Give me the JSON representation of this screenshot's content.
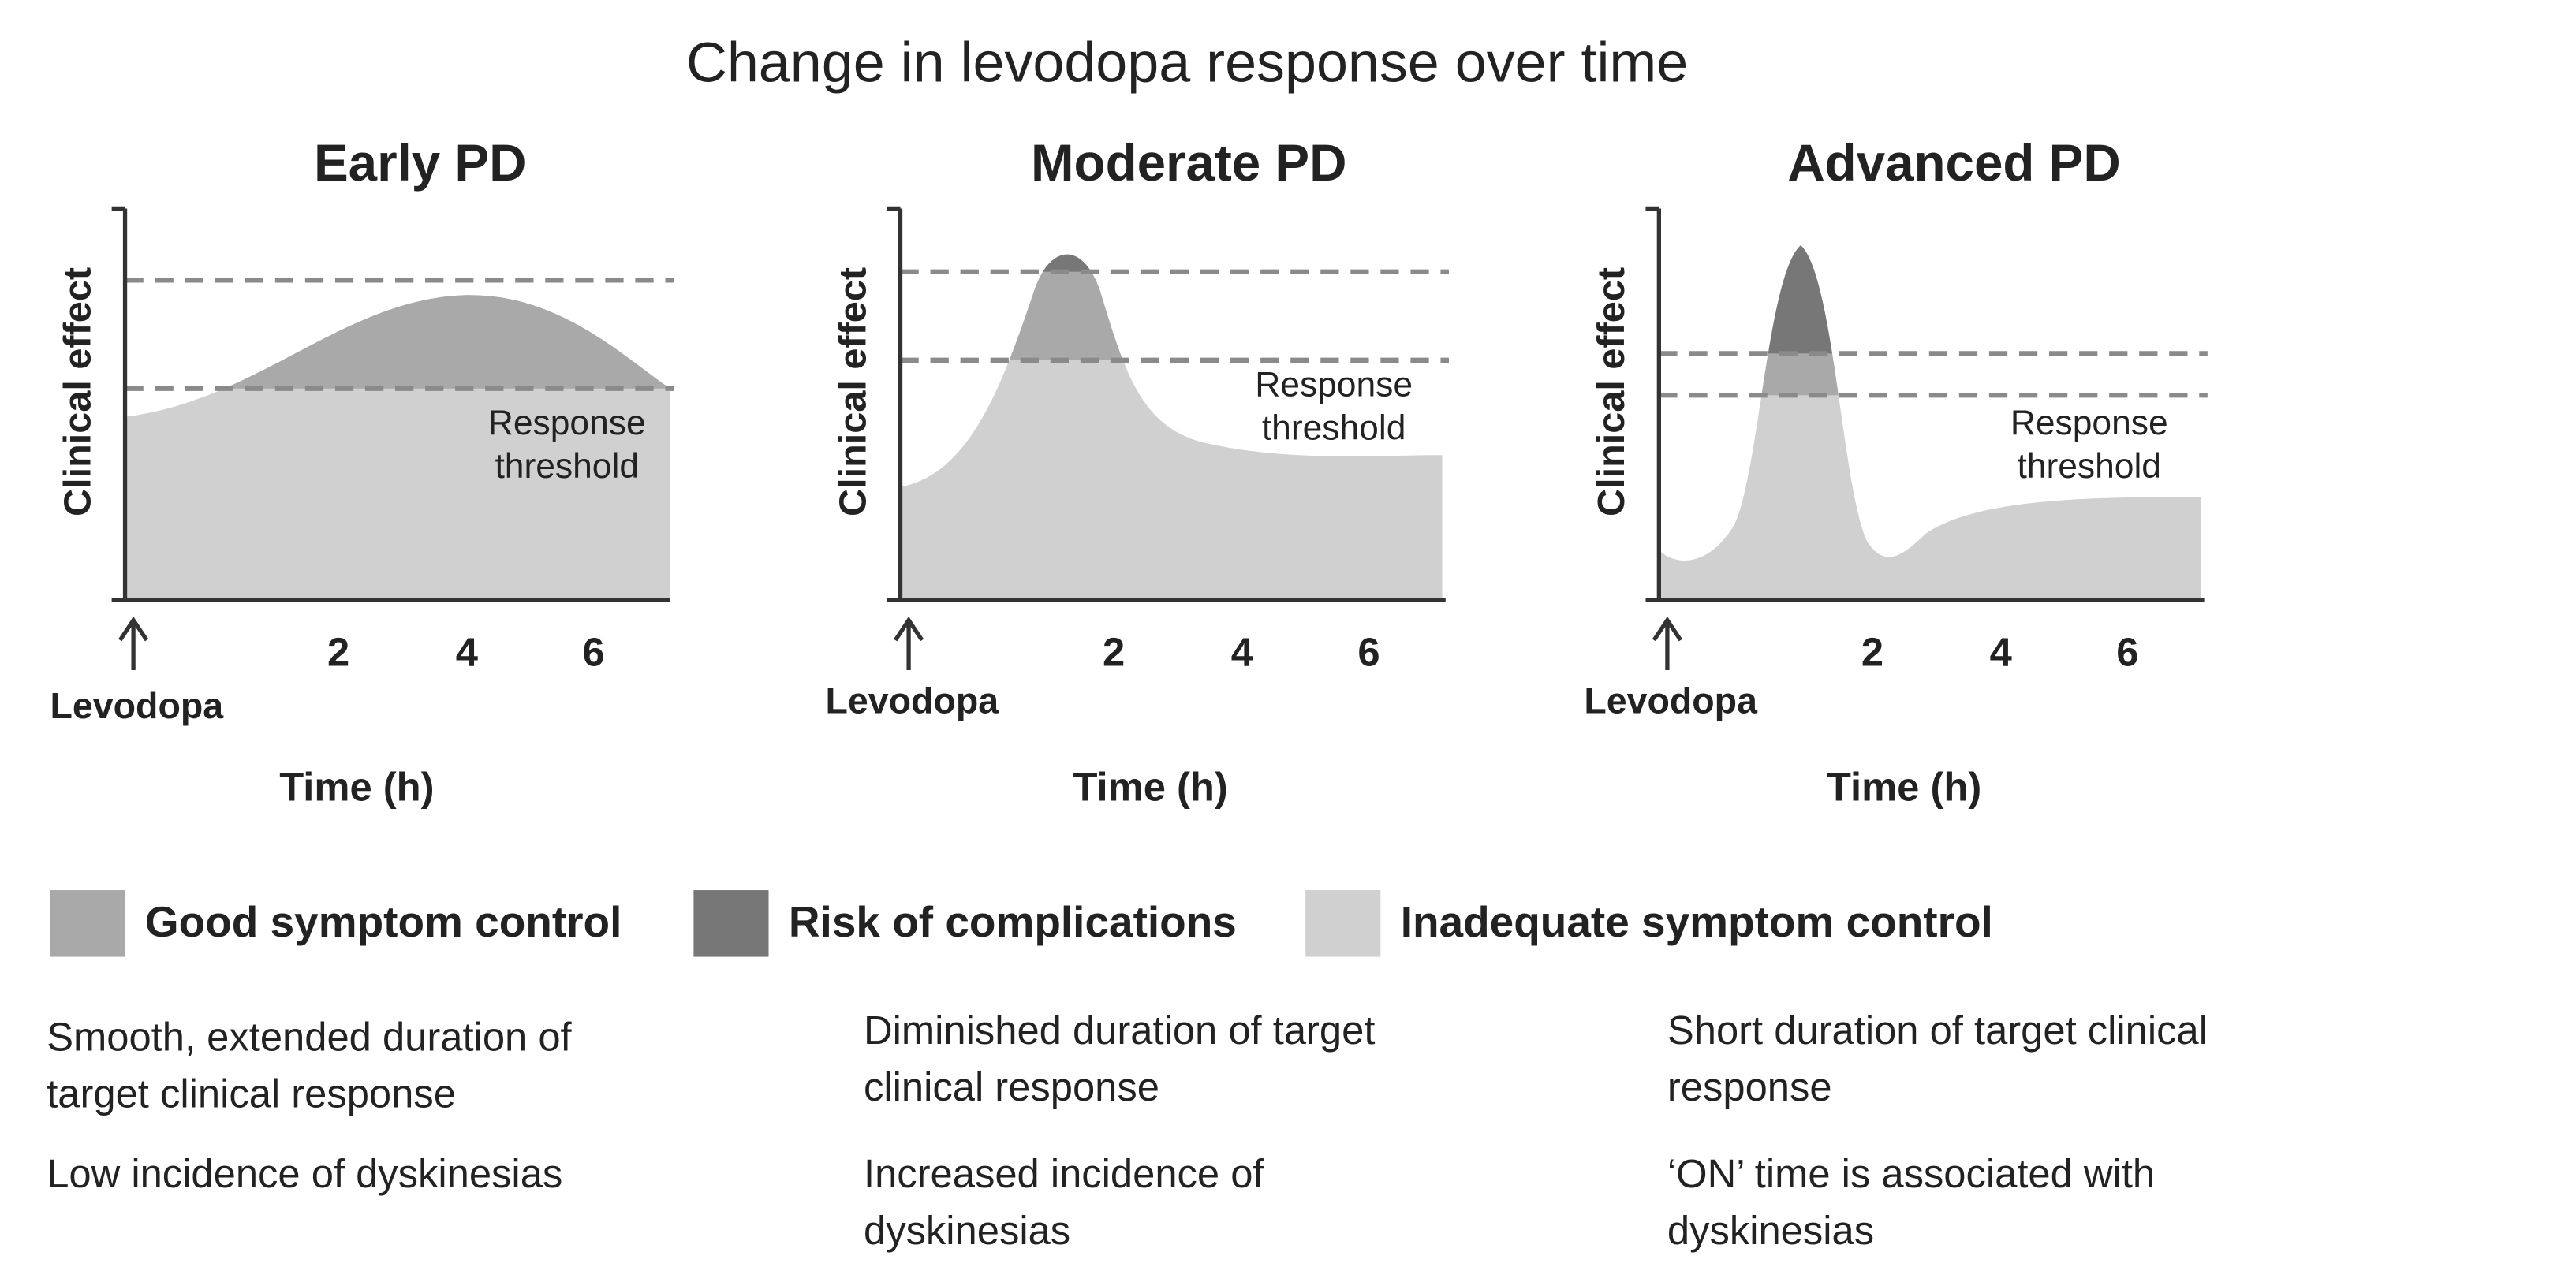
{
  "title": "Change in levodopa response over time",
  "panels": [
    {
      "title": "Early PD",
      "y_label": "Clinical effect",
      "x_label": "Time (h)",
      "dose_label": "Levodopa",
      "threshold_label": [
        "Response",
        "threshold"
      ],
      "x_ticks": [
        2,
        4,
        6
      ],
      "notes": [
        [
          "Smooth, extended duration of",
          "target clinical response"
        ],
        [
          "Low incidence of dyskinesias"
        ]
      ]
    },
    {
      "title": "Moderate PD",
      "y_label": "Clinical effect",
      "x_label": "Time (h)",
      "dose_label": "Levodopa",
      "threshold_label": [
        "Response",
        "threshold"
      ],
      "x_ticks": [
        2,
        4,
        6
      ],
      "notes": [
        [
          "Diminished duration of target",
          "clinical response"
        ],
        [
          "Increased incidence of",
          "dyskinesias"
        ]
      ]
    },
    {
      "title": "Advanced PD",
      "y_label": "Clinical effect",
      "x_label": "Time (h)",
      "dose_label": "Levodopa",
      "threshold_label": [
        "Response",
        "threshold"
      ],
      "x_ticks": [
        2,
        4,
        6
      ],
      "notes": [
        [
          "Short duration of target clinical",
          "response"
        ],
        [
          "‘ON’ time is associated with",
          "dyskinesias"
        ]
      ]
    }
  ],
  "legend": [
    {
      "label": "Good symptom control",
      "color": "#a9a9a9"
    },
    {
      "label": "Risk of complications",
      "color": "#777777"
    },
    {
      "label": "Inadequate symptom control",
      "color": "#d0d0d0"
    }
  ]
}
